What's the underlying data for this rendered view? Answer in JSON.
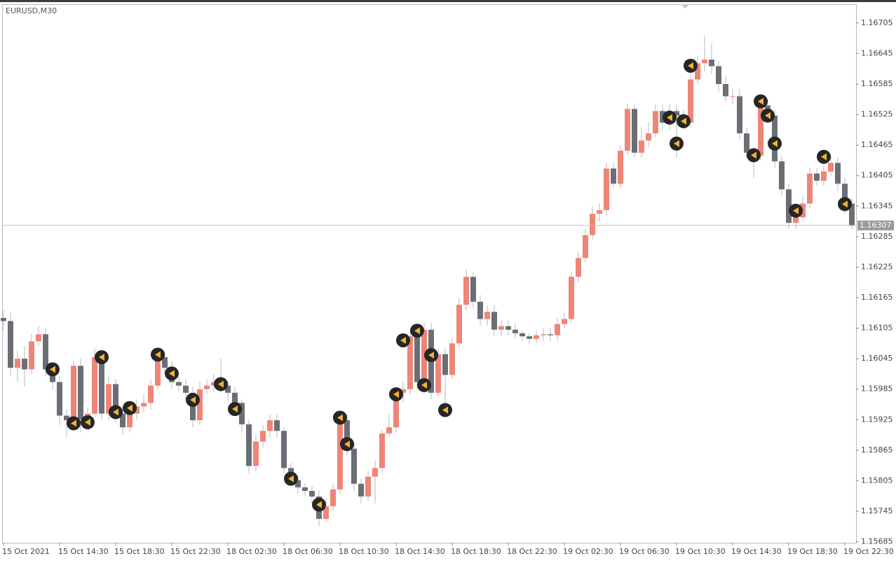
{
  "chart_data": {
    "type": "candlestick",
    "title": "EURUSD,M30",
    "categories": [
      "15 Oct 2021",
      null,
      null,
      null,
      null,
      null,
      null,
      null,
      "15 Oct 14:30",
      null,
      null,
      null,
      null,
      null,
      null,
      null,
      "15 Oct 18:30",
      null,
      null,
      null,
      null,
      null,
      null,
      null,
      "15 Oct 22:30",
      null,
      null,
      null,
      null,
      null,
      null,
      null,
      "18 Oct 02:30",
      null,
      null,
      null,
      null,
      null,
      null,
      null,
      "18 Oct 06:30",
      null,
      null,
      null,
      null,
      null,
      null,
      null,
      "18 Oct 10:30",
      null,
      null,
      null,
      null,
      null,
      null,
      null,
      "18 Oct 14:30",
      null,
      null,
      null,
      null,
      null,
      null,
      null,
      "18 Oct 18:30",
      null,
      null,
      null,
      null,
      null,
      null,
      null,
      "18 Oct 22:30",
      null,
      null,
      null,
      null,
      null,
      null,
      null,
      "19 Oct 02:30",
      null,
      null,
      null,
      null,
      null,
      null,
      null,
      "19 Oct 06:30",
      null,
      null,
      null,
      null,
      null,
      null,
      null,
      "19 Oct 10:30",
      null,
      null,
      null,
      null,
      null,
      null,
      null,
      "19 Oct 14:30",
      null,
      null,
      null,
      null,
      null,
      null,
      null,
      "19 Oct 18:30",
      null,
      null,
      null,
      null,
      null,
      null,
      null,
      "19 Oct 22:30",
      null
    ],
    "open": [
      1.16125,
      1.16119,
      1.16027,
      1.16045,
      1.16024,
      1.16079,
      1.16093,
      1.16024,
      1.15999,
      1.15933,
      1.15924,
      1.16031,
      1.15926,
      1.15937,
      1.16048,
      1.15937,
      1.15995,
      1.15937,
      1.1591,
      1.15937,
      1.15951,
      1.15958,
      1.15992,
      1.16048,
      1.16027,
      1.15999,
      1.15992,
      1.15978,
      1.15924,
      1.15985,
      1.15992,
      1.15999,
      1.15992,
      1.15978,
      1.15958,
      1.15916,
      1.15834,
      1.15882,
      1.15903,
      1.15924,
      1.15903,
      1.1583,
      1.15806,
      1.15792,
      1.15785,
      1.15774,
      1.1573,
      1.15755,
      1.15788,
      1.15924,
      1.15868,
      1.15799,
      1.15774,
      1.15813,
      1.1583,
      1.15898,
      1.1591,
      1.15978,
      1.15985,
      1.16089,
      1.15999,
      1.16102,
      1.15978,
      1.16054,
      1.16013,
      1.16075,
      1.16151,
      1.16206,
      1.16157,
      1.16123,
      1.16137,
      1.16102,
      1.16109,
      1.16102,
      1.16095,
      1.16089,
      1.16084,
      1.16091,
      1.16093,
      1.16091,
      1.16113,
      1.16123,
      1.16206,
      1.16243,
      1.16288,
      1.1633,
      1.16337,
      1.16419,
      1.16389,
      1.16454,
      1.16536,
      1.1645,
      1.16474,
      1.16488,
      1.16532,
      1.16509,
      1.16532,
      1.16523,
      1.16509,
      1.16594,
      1.16626,
      1.16633,
      1.1662,
      1.16585,
      1.16561,
      1.16561,
      1.16488,
      1.1645,
      1.16444,
      1.16543,
      1.16523,
      1.16433,
      1.16378,
      1.16312,
      1.16323,
      1.1635,
      1.16409,
      1.16395,
      1.16413,
      1.1643,
      1.16389,
      1.1635
    ],
    "high": [
      1.1614,
      1.16135,
      1.1606,
      1.1607,
      1.16095,
      1.1611,
      1.16105,
      1.16035,
      1.1601,
      1.15945,
      1.1604,
      1.16045,
      1.1595,
      1.16065,
      1.1606,
      1.1601,
      1.16005,
      1.1595,
      1.1595,
      1.15965,
      1.15975,
      1.16005,
      1.1606,
      1.1606,
      1.1604,
      1.1601,
      1.16005,
      1.1599,
      1.16,
      1.16005,
      1.16015,
      1.16045,
      1.16,
      1.1599,
      1.15965,
      1.15925,
      1.15895,
      1.15915,
      1.15935,
      1.15935,
      1.1591,
      1.1584,
      1.15815,
      1.158,
      1.15795,
      1.15785,
      1.1577,
      1.158,
      1.15935,
      1.15935,
      1.1588,
      1.1581,
      1.15825,
      1.15845,
      1.15905,
      1.15935,
      1.1599,
      1.16,
      1.161,
      1.161,
      1.16115,
      1.16115,
      1.16065,
      1.16065,
      1.16085,
      1.16165,
      1.1622,
      1.16215,
      1.1617,
      1.1615,
      1.1615,
      1.1612,
      1.1612,
      1.16115,
      1.161,
      1.16095,
      1.161,
      1.16105,
      1.16105,
      1.16125,
      1.16135,
      1.16215,
      1.16255,
      1.163,
      1.16345,
      1.1635,
      1.1643,
      1.1643,
      1.16465,
      1.16545,
      1.16545,
      1.165,
      1.1651,
      1.16545,
      1.16545,
      1.16545,
      1.16545,
      1.16535,
      1.16605,
      1.1664,
      1.1668,
      1.16665,
      1.1663,
      1.166,
      1.16575,
      1.16575,
      1.165,
      1.1646,
      1.1656,
      1.16555,
      1.16535,
      1.16445,
      1.1639,
      1.1634,
      1.16365,
      1.1642,
      1.1642,
      1.16425,
      1.16445,
      1.1644,
      1.164,
      1.1636
    ],
    "low": [
      1.161,
      1.1601,
      1.16,
      1.1599,
      1.16015,
      1.1607,
      1.1601,
      1.15985,
      1.15915,
      1.1589,
      1.15905,
      1.159,
      1.15915,
      1.1593,
      1.15925,
      1.15925,
      1.1592,
      1.15895,
      1.159,
      1.15925,
      1.1594,
      1.15945,
      1.15985,
      1.16015,
      1.15985,
      1.1598,
      1.15965,
      1.1591,
      1.15915,
      1.15975,
      1.1598,
      1.1598,
      1.1596,
      1.15945,
      1.159,
      1.1582,
      1.15825,
      1.1587,
      1.1589,
      1.1589,
      1.1582,
      1.15795,
      1.1578,
      1.15775,
      1.1576,
      1.15715,
      1.15725,
      1.15745,
      1.1578,
      1.15855,
      1.15785,
      1.1576,
      1.15765,
      1.1576,
      1.1582,
      1.1589,
      1.159,
      1.1596,
      1.15975,
      1.15985,
      1.1599,
      1.15965,
      1.1597,
      1.1594,
      1.16005,
      1.16065,
      1.1614,
      1.16145,
      1.1611,
      1.1611,
      1.1609,
      1.1609,
      1.1609,
      1.16085,
      1.1608,
      1.16075,
      1.16075,
      1.1608,
      1.1608,
      1.1608,
      1.16105,
      1.16115,
      1.16195,
      1.16235,
      1.1628,
      1.16315,
      1.16325,
      1.1638,
      1.1638,
      1.16445,
      1.1644,
      1.1644,
      1.1646,
      1.1648,
      1.16495,
      1.16495,
      1.1644,
      1.16495,
      1.165,
      1.16585,
      1.1661,
      1.16605,
      1.1657,
      1.1655,
      1.16545,
      1.16475,
      1.1644,
      1.164,
      1.16435,
      1.1651,
      1.1642,
      1.16365,
      1.163,
      1.163,
      1.16315,
      1.1634,
      1.16385,
      1.16385,
      1.16405,
      1.16375,
      1.1633,
      1.163
    ],
    "close": [
      1.16119,
      1.16027,
      1.16045,
      1.16024,
      1.16079,
      1.16093,
      1.16024,
      1.15999,
      1.15933,
      1.15924,
      1.16031,
      1.15926,
      1.15937,
      1.16048,
      1.15937,
      1.15995,
      1.15937,
      1.1591,
      1.15937,
      1.15951,
      1.15958,
      1.15992,
      1.16048,
      1.16027,
      1.15999,
      1.15992,
      1.15978,
      1.15924,
      1.15985,
      1.15992,
      1.15999,
      1.15992,
      1.15978,
      1.15958,
      1.15916,
      1.15834,
      1.15882,
      1.15903,
      1.15924,
      1.15903,
      1.1583,
      1.15806,
      1.15792,
      1.15785,
      1.15774,
      1.1573,
      1.15755,
      1.15788,
      1.15924,
      1.15868,
      1.15799,
      1.15774,
      1.15813,
      1.1583,
      1.15898,
      1.1591,
      1.15978,
      1.15985,
      1.16089,
      1.15999,
      1.16102,
      1.15978,
      1.16054,
      1.16013,
      1.16075,
      1.16151,
      1.16206,
      1.16157,
      1.16123,
      1.16137,
      1.16102,
      1.16109,
      1.16102,
      1.16095,
      1.16089,
      1.16084,
      1.16091,
      1.16093,
      1.16091,
      1.16113,
      1.16123,
      1.16206,
      1.16243,
      1.16288,
      1.1633,
      1.16337,
      1.16419,
      1.16389,
      1.16454,
      1.16536,
      1.1645,
      1.16474,
      1.16488,
      1.16532,
      1.16509,
      1.16532,
      1.16523,
      1.16509,
      1.16594,
      1.16626,
      1.16633,
      1.1662,
      1.16585,
      1.16561,
      1.16561,
      1.16488,
      1.1645,
      1.16444,
      1.16543,
      1.16523,
      1.16433,
      1.16378,
      1.16312,
      1.16323,
      1.1635,
      1.16409,
      1.16395,
      1.16413,
      1.1643,
      1.16389,
      1.1635,
      1.16307
    ],
    "up_color": "#ef8577",
    "down_color": "#6b6e75",
    "wick_color": "#b8b8b8",
    "current_price": 1.16307,
    "markers": {
      "color": "#262626",
      "icon_color": "#f2b134",
      "values": [
        null,
        null,
        null,
        null,
        null,
        null,
        null,
        1.16024,
        null,
        null,
        1.15918,
        null,
        1.1592,
        null,
        1.16048,
        null,
        1.1594,
        null,
        1.15948,
        null,
        null,
        null,
        1.16053,
        null,
        1.16016,
        null,
        null,
        1.15964,
        null,
        null,
        null,
        1.15995,
        null,
        1.15946,
        null,
        null,
        null,
        null,
        null,
        null,
        null,
        1.15809,
        null,
        null,
        null,
        1.15758,
        null,
        null,
        1.15929,
        1.15877,
        null,
        null,
        null,
        null,
        null,
        null,
        1.15975,
        1.16081,
        null,
        1.161,
        1.15993,
        1.16052,
        null,
        1.15944,
        null,
        null,
        null,
        null,
        null,
        null,
        null,
        null,
        null,
        null,
        null,
        null,
        null,
        null,
        null,
        null,
        null,
        null,
        null,
        null,
        null,
        null,
        null,
        null,
        null,
        null,
        null,
        null,
        null,
        null,
        null,
        1.16519,
        1.16468,
        1.16512,
        1.16621,
        null,
        null,
        null,
        null,
        null,
        null,
        null,
        null,
        1.16445,
        1.16551,
        1.16523,
        1.16468,
        null,
        null,
        1.16336,
        null,
        null,
        null,
        1.16442,
        null,
        null,
        1.16349,
        null
      ]
    },
    "ylim": [
      1.15683,
      1.16742
    ],
    "yticks": [
      1.16705,
      1.16645,
      1.16585,
      1.16525,
      1.16465,
      1.16405,
      1.16345,
      1.16285,
      1.16225,
      1.16165,
      1.16105,
      1.16045,
      1.15985,
      1.15925,
      1.15865,
      1.15805,
      1.15745,
      1.15685
    ]
  }
}
